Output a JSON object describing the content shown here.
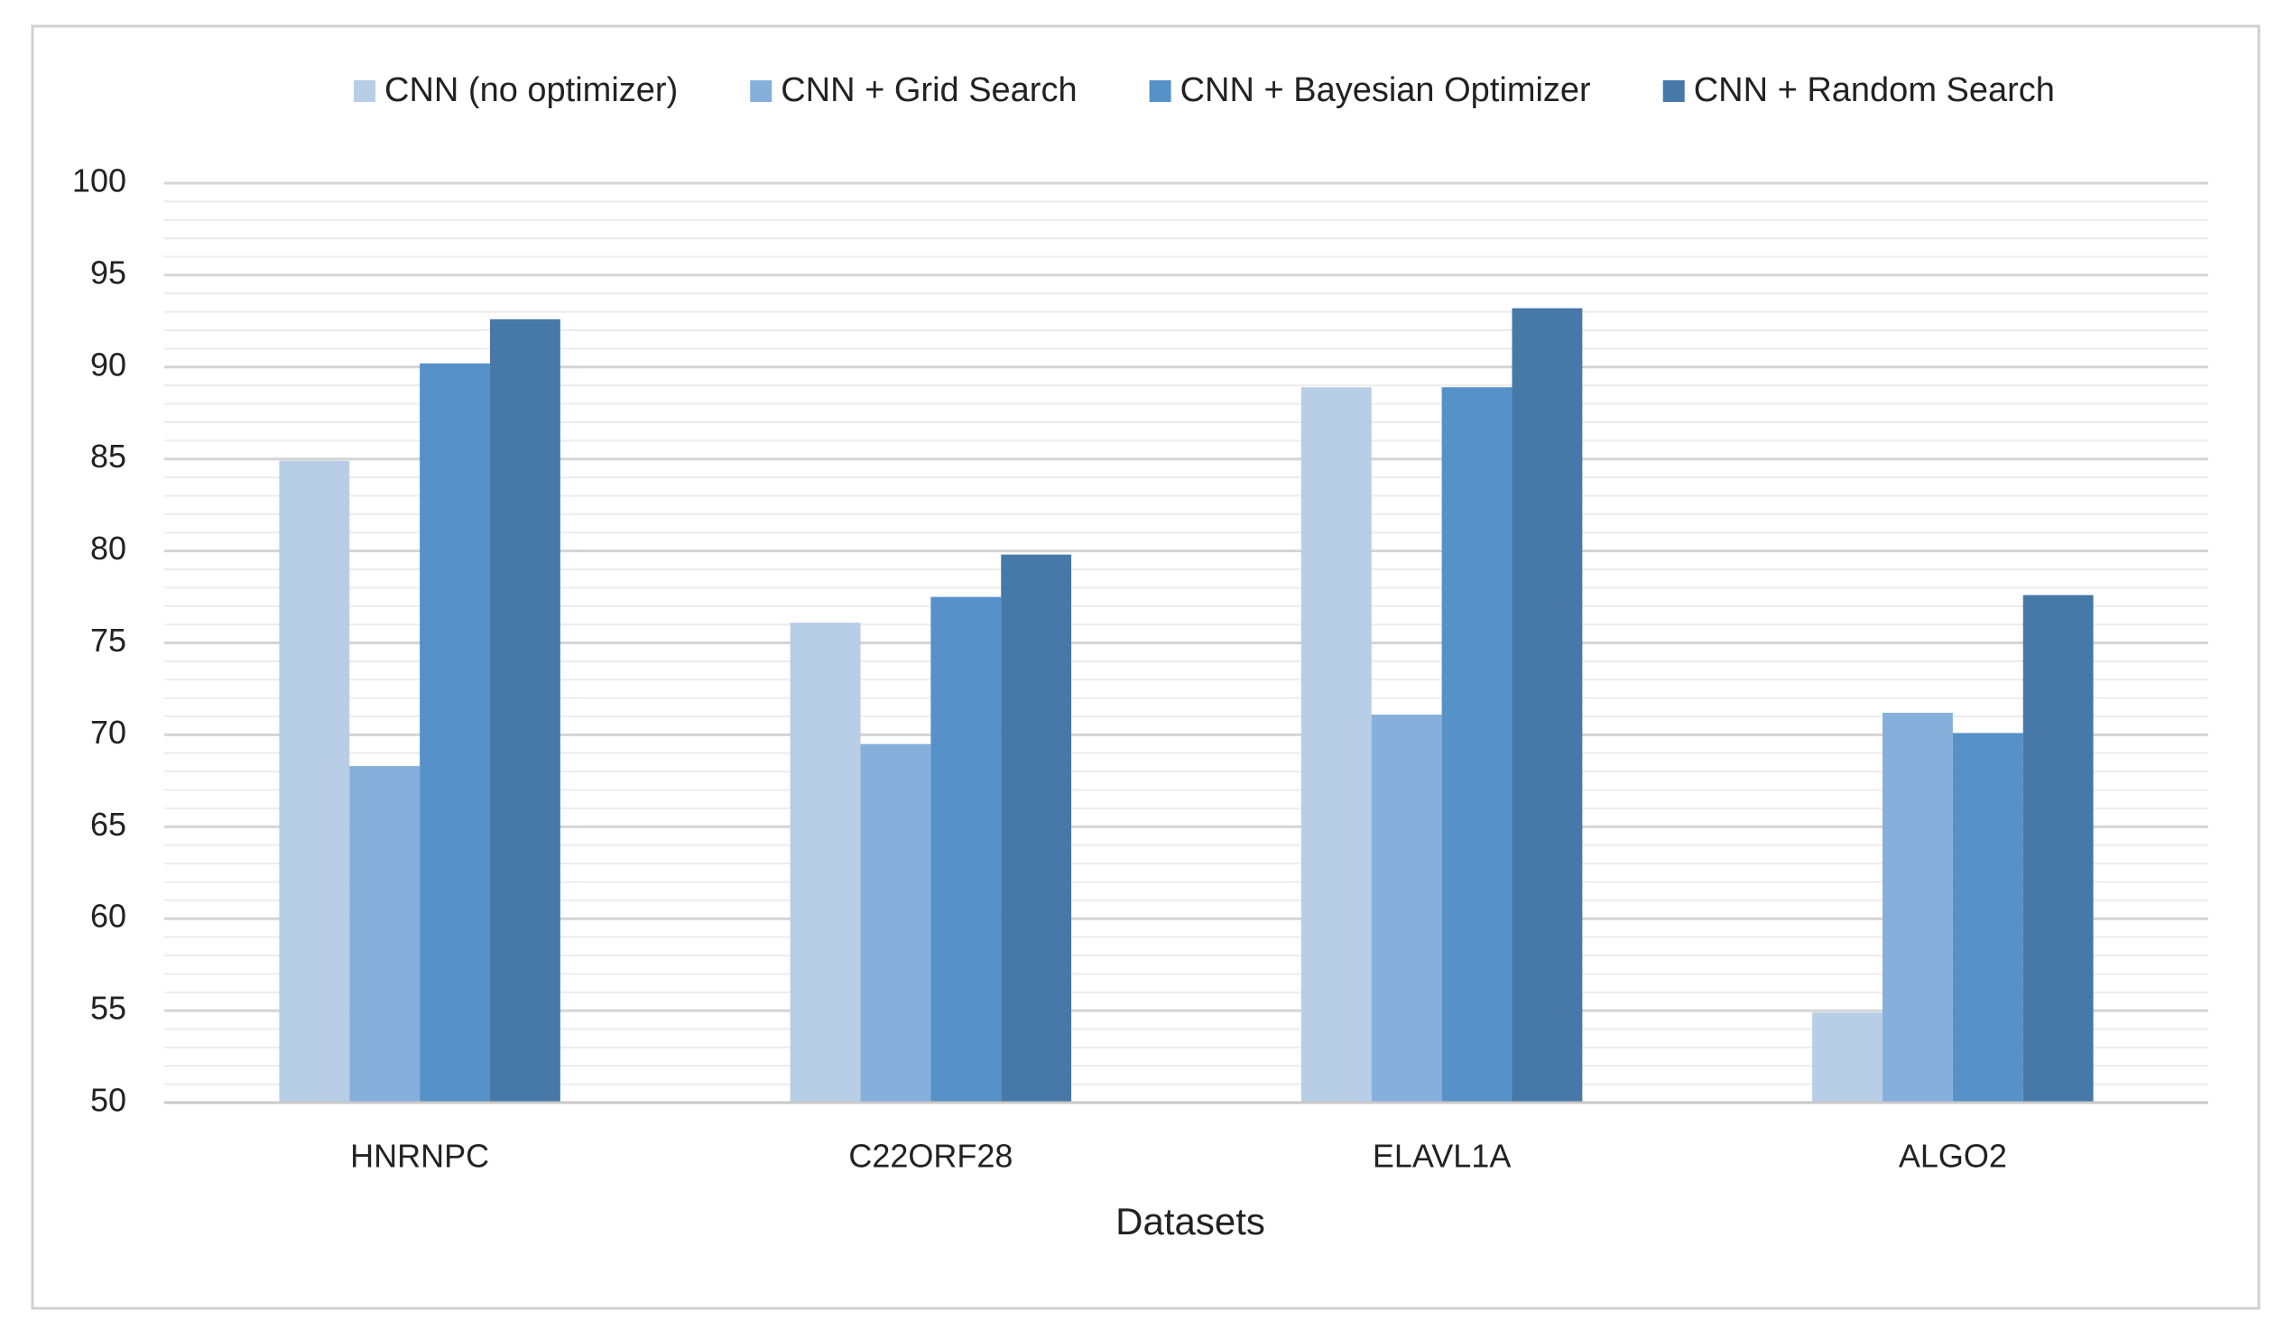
{
  "chart_data": {
    "type": "bar",
    "x_label": "Datasets",
    "categories": [
      "HNRNPC",
      "C22ORF28",
      "ELAVL1A",
      "ALGO2"
    ],
    "series": [
      {
        "name": "CNN  (no optimizer)",
        "color": "#b8cde6",
        "values": [
          84.9,
          76.1,
          88.9,
          54.9
        ]
      },
      {
        "name": "CNN  + Grid Search",
        "color": "#87afdc",
        "values": [
          68.3,
          69.5,
          71.1,
          71.2
        ]
      },
      {
        "name": "CNN + Bayesian Optimizer",
        "color": "#5691c8",
        "values": [
          90.2,
          77.5,
          88.9,
          70.1
        ]
      },
      {
        "name": "CNN + Random Search",
        "color": "#4678a8",
        "values": [
          92.6,
          79.8,
          93.2,
          77.6
        ]
      }
    ],
    "ylim": [
      50,
      100
    ],
    "yticks": [
      50,
      55,
      60,
      65,
      70,
      75,
      80,
      85,
      90,
      95,
      100
    ],
    "grid": true,
    "minor_grid": true,
    "legend": "top"
  }
}
